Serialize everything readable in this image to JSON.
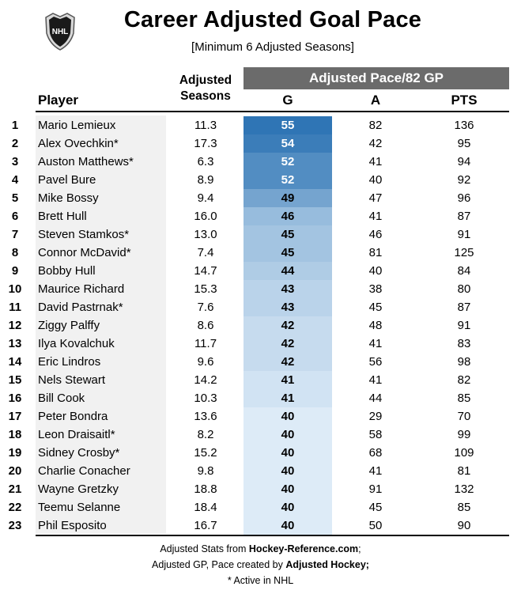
{
  "title": "Career Adjusted Goal Pace",
  "subtitle": "[Minimum 6 Adjusted Seasons]",
  "logo_text": "NHL",
  "group_header": "Adjusted Pace/82 GP",
  "columns": {
    "player": "Player",
    "seasons_line1": "Adjusted",
    "seasons_line2": "Seasons",
    "g": "G",
    "a": "A",
    "pts": "PTS"
  },
  "rows": [
    {
      "rank": "1",
      "player": "Mario Lemieux",
      "seasons": "11.3",
      "g": "55",
      "a": "82",
      "pts": "136"
    },
    {
      "rank": "2",
      "player": "Alex Ovechkin*",
      "seasons": "17.3",
      "g": "54",
      "a": "42",
      "pts": "95"
    },
    {
      "rank": "3",
      "player": "Auston Matthews*",
      "seasons": "6.3",
      "g": "52",
      "a": "41",
      "pts": "94"
    },
    {
      "rank": "4",
      "player": "Pavel Bure",
      "seasons": "8.9",
      "g": "52",
      "a": "40",
      "pts": "92"
    },
    {
      "rank": "5",
      "player": "Mike Bossy",
      "seasons": "9.4",
      "g": "49",
      "a": "47",
      "pts": "96"
    },
    {
      "rank": "6",
      "player": "Brett Hull",
      "seasons": "16.0",
      "g": "46",
      "a": "41",
      "pts": "87"
    },
    {
      "rank": "7",
      "player": "Steven Stamkos*",
      "seasons": "13.0",
      "g": "45",
      "a": "46",
      "pts": "91"
    },
    {
      "rank": "8",
      "player": "Connor McDavid*",
      "seasons": "7.4",
      "g": "45",
      "a": "81",
      "pts": "125"
    },
    {
      "rank": "9",
      "player": "Bobby Hull",
      "seasons": "14.7",
      "g": "44",
      "a": "40",
      "pts": "84"
    },
    {
      "rank": "10",
      "player": "Maurice Richard",
      "seasons": "15.3",
      "g": "43",
      "a": "38",
      "pts": "80"
    },
    {
      "rank": "11",
      "player": "David Pastrnak*",
      "seasons": "7.6",
      "g": "43",
      "a": "45",
      "pts": "87"
    },
    {
      "rank": "12",
      "player": "Ziggy Palffy",
      "seasons": "8.6",
      "g": "42",
      "a": "48",
      "pts": "91"
    },
    {
      "rank": "13",
      "player": "Ilya Kovalchuk",
      "seasons": "11.7",
      "g": "42",
      "a": "41",
      "pts": "83"
    },
    {
      "rank": "14",
      "player": "Eric Lindros",
      "seasons": "9.6",
      "g": "42",
      "a": "56",
      "pts": "98"
    },
    {
      "rank": "15",
      "player": "Nels Stewart",
      "seasons": "14.2",
      "g": "41",
      "a": "41",
      "pts": "82"
    },
    {
      "rank": "16",
      "player": "Bill Cook",
      "seasons": "10.3",
      "g": "41",
      "a": "44",
      "pts": "85"
    },
    {
      "rank": "17",
      "player": "Peter Bondra",
      "seasons": "13.6",
      "g": "40",
      "a": "29",
      "pts": "70"
    },
    {
      "rank": "18",
      "player": "Leon Draisaitl*",
      "seasons": "8.2",
      "g": "40",
      "a": "58",
      "pts": "99"
    },
    {
      "rank": "19",
      "player": "Sidney Crosby*",
      "seasons": "15.2",
      "g": "40",
      "a": "68",
      "pts": "109"
    },
    {
      "rank": "20",
      "player": "Charlie Conacher",
      "seasons": "9.8",
      "g": "40",
      "a": "41",
      "pts": "81"
    },
    {
      "rank": "21",
      "player": "Wayne Gretzky",
      "seasons": "18.8",
      "g": "40",
      "a": "91",
      "pts": "132"
    },
    {
      "rank": "22",
      "player": "Teemu Selanne",
      "seasons": "18.4",
      "g": "40",
      "a": "45",
      "pts": "85"
    },
    {
      "rank": "23",
      "player": "Phil Esposito",
      "seasons": "16.7",
      "g": "40",
      "a": "50",
      "pts": "90"
    }
  ],
  "footer": {
    "line1_prefix": "Adjusted Stats from ",
    "line1_source": "Hockey-Reference.com",
    "line1_suffix": ";",
    "line2_prefix": "Adjusted GP, Pace created by ",
    "line2_source": "Adjusted Hockey;",
    "line3": "* Active in NHL"
  },
  "colors": {
    "header_bar": "#6b6b6b",
    "heat_high": "#2f75b5",
    "heat_low": "#ddebf7",
    "player_column_bg": "#f1f1f1"
  }
}
